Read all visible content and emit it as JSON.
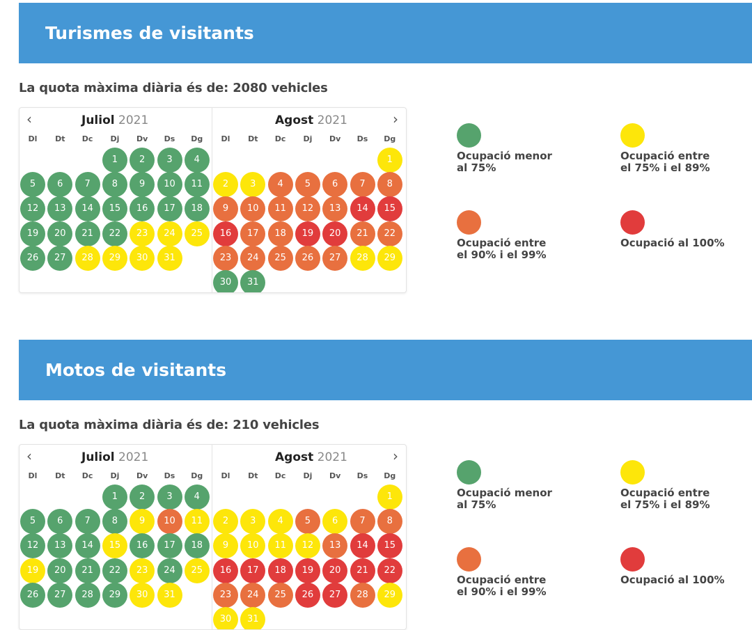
{
  "colors": {
    "green": "#56a36d",
    "yellow": "#fde60a",
    "orange": "#e8703f",
    "red": "#e13c3c",
    "banner": "#4597d5"
  },
  "weekdays": [
    "Dl",
    "Dt",
    "Dc",
    "Dj",
    "Dv",
    "Ds",
    "Dg"
  ],
  "nav": {
    "prev": "‹",
    "next": "›"
  },
  "legend": [
    {
      "color": "green",
      "text": "Ocupació menor\nal 75%"
    },
    {
      "color": "yellow",
      "text": "Ocupació entre\nel 75% i el 89%"
    },
    {
      "color": "orange",
      "text": "Ocupació entre\nel 90% i el 99%"
    },
    {
      "color": "red",
      "text": "Ocupació al 100%"
    }
  ],
  "sections": [
    {
      "title": "Turismes de visitants",
      "quota": "La quota màxima diària és de: 2080 vehicles",
      "months": [
        {
          "name": "Juliol",
          "year": "2021",
          "offset": 3,
          "days": [
            "green",
            "green",
            "green",
            "green",
            "green",
            "green",
            "green",
            "green",
            "green",
            "green",
            "green",
            "green",
            "green",
            "green",
            "green",
            "green",
            "green",
            "green",
            "green",
            "green",
            "green",
            "green",
            "yellow",
            "yellow",
            "yellow",
            "green",
            "green",
            "yellow",
            "yellow",
            "yellow",
            "yellow"
          ]
        },
        {
          "name": "Agost",
          "year": "2021",
          "offset": 6,
          "days": [
            "yellow",
            "yellow",
            "yellow",
            "orange",
            "orange",
            "orange",
            "orange",
            "orange",
            "orange",
            "orange",
            "orange",
            "orange",
            "orange",
            "red",
            "red",
            "red",
            "orange",
            "orange",
            "red",
            "red",
            "orange",
            "orange",
            "orange",
            "orange",
            "orange",
            "orange",
            "orange",
            "yellow",
            "yellow",
            "green",
            "green"
          ]
        }
      ]
    },
    {
      "title": "Motos de visitants",
      "quota": "La quota màxima diària és de: 210 vehicles",
      "months": [
        {
          "name": "Juliol",
          "year": "2021",
          "offset": 3,
          "days": [
            "green",
            "green",
            "green",
            "green",
            "green",
            "green",
            "green",
            "green",
            "yellow",
            "orange",
            "yellow",
            "green",
            "green",
            "green",
            "yellow",
            "green",
            "green",
            "green",
            "yellow",
            "green",
            "green",
            "green",
            "yellow",
            "green",
            "yellow",
            "green",
            "green",
            "green",
            "green",
            "yellow",
            "yellow"
          ]
        },
        {
          "name": "Agost",
          "year": "2021",
          "offset": 6,
          "days": [
            "yellow",
            "yellow",
            "yellow",
            "yellow",
            "orange",
            "yellow",
            "orange",
            "orange",
            "yellow",
            "yellow",
            "yellow",
            "yellow",
            "orange",
            "red",
            "red",
            "red",
            "red",
            "red",
            "red",
            "red",
            "red",
            "red",
            "orange",
            "orange",
            "orange",
            "red",
            "red",
            "orange",
            "yellow",
            "yellow",
            "yellow"
          ]
        }
      ]
    }
  ]
}
